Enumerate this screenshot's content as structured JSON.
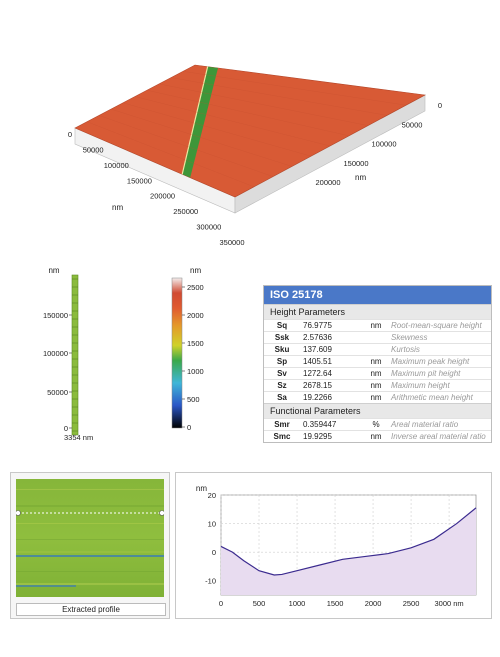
{
  "surface_3d": {
    "unit": "nm",
    "x_axis_ticks": [
      "0",
      "50000",
      "100000",
      "150000",
      "200000"
    ],
    "y_axis_ticks": [
      "0",
      "50000",
      "100000",
      "150000",
      "200000",
      "250000",
      "300000",
      "350000"
    ],
    "colors": {
      "top": "#d85a35",
      "front": "#f2f2f2",
      "side": "#dcdcdc",
      "scratch": "#2e9c3a"
    }
  },
  "profile_scale": {
    "unit": "nm",
    "ticks": [
      "150000",
      "100000",
      "50000",
      "0"
    ],
    "extent_label": "3354 nm"
  },
  "colorbar": {
    "unit": "nm",
    "ticks": [
      "2500",
      "2000",
      "1500",
      "1000",
      "500",
      "0"
    ],
    "colors": [
      "#000000",
      "#2a56c6",
      "#3fb6d8",
      "#3aa84a",
      "#cfd22a",
      "#e49a2a",
      "#e05a30",
      "#d04a32",
      "#f3eded"
    ]
  },
  "iso": {
    "title": "ISO 25178",
    "height_title": "Height Parameters",
    "height_params": [
      {
        "sym": "Sq",
        "val": "76.9775",
        "unit": "nm",
        "desc": "Root-mean-square height"
      },
      {
        "sym": "Ssk",
        "val": "2.57636",
        "unit": "",
        "desc": "Skewness"
      },
      {
        "sym": "Sku",
        "val": "137.609",
        "unit": "",
        "desc": "Kurtosis"
      },
      {
        "sym": "Sp",
        "val": "1405.51",
        "unit": "nm",
        "desc": "Maximum peak height"
      },
      {
        "sym": "Sv",
        "val": "1272.64",
        "unit": "nm",
        "desc": "Maximum pit height"
      },
      {
        "sym": "Sz",
        "val": "2678.15",
        "unit": "nm",
        "desc": "Maximum height"
      },
      {
        "sym": "Sa",
        "val": "19.2266",
        "unit": "nm",
        "desc": "Arithmetic mean height"
      }
    ],
    "functional_title": "Functional Parameters",
    "functional_params": [
      {
        "sym": "Smr",
        "val": "0.359447",
        "unit": "%",
        "desc": "Areal material ratio"
      },
      {
        "sym": "Smc",
        "val": "19.9295",
        "unit": "nm",
        "desc": "Inverse areal material ratio"
      }
    ]
  },
  "extracted": {
    "caption": "Extracted profile"
  },
  "chart_data": {
    "type": "area",
    "xlabel": "nm",
    "ylabel": "nm",
    "xlim": [
      0,
      3354
    ],
    "ylim": [
      -15,
      20
    ],
    "x_ticks": [
      "0",
      "500",
      "1000",
      "1500",
      "2000",
      "2500",
      "3000 nm"
    ],
    "y_ticks": [
      "20",
      "10",
      "0",
      "-10"
    ],
    "grid": true,
    "series": [
      {
        "x": [
          0,
          150,
          300,
          500,
          700,
          800,
          1000,
          1300,
          1600,
          1900,
          2200,
          2500,
          2800,
          3100,
          3354
        ],
        "y": [
          2,
          0,
          -3,
          -6.5,
          -8,
          -7.8,
          -6.5,
          -4.5,
          -2.5,
          -1.5,
          -0.5,
          1.5,
          4.5,
          10,
          15.5
        ],
        "color": "#3b2b8f",
        "fill": "#e8dcf0"
      }
    ]
  }
}
